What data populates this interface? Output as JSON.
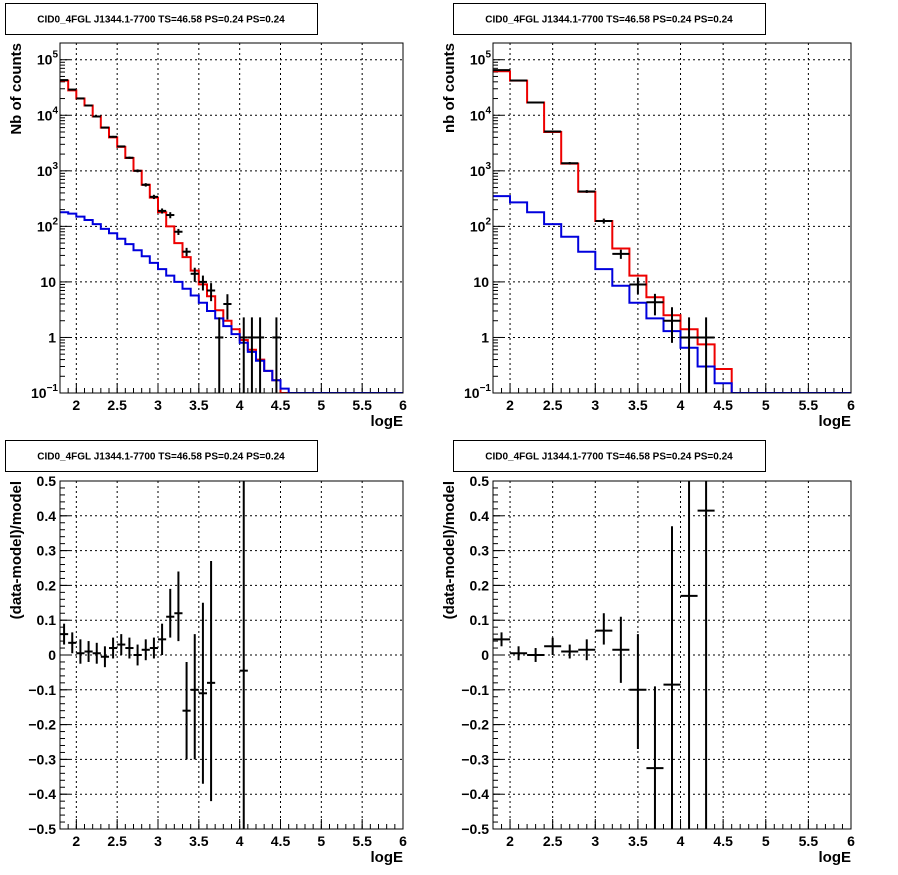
{
  "colors": {
    "data": "#000000",
    "total_model": "#ee0000",
    "source_model": "#0000dd",
    "background": "#ffffff"
  },
  "chart_data": [
    {
      "type": "line",
      "title": "CID0_4FGL J1344.1-7700 TS=46.58 PS=0.24 PS=0.24",
      "xlabel": "logE",
      "ylabel": "Nb of counts",
      "xlim": [
        1.8,
        6.0
      ],
      "ylim": [
        0.1,
        200000
      ],
      "yscale": "log",
      "grid": true,
      "xticks": [
        "2",
        "2.5",
        "3",
        "3.5",
        "4",
        "4.5",
        "5",
        "5.5",
        "6"
      ],
      "yticks": [
        {
          "value": 0.1,
          "base": "10",
          "exp": "−1"
        },
        {
          "value": 1,
          "base": "1",
          "exp": ""
        },
        {
          "value": 10,
          "base": "10",
          "exp": ""
        },
        {
          "value": 100,
          "base": "10",
          "exp": "2"
        },
        {
          "value": 1000,
          "base": "10",
          "exp": "3"
        },
        {
          "value": 10000,
          "base": "10",
          "exp": "4"
        },
        {
          "value": 100000,
          "base": "10",
          "exp": "5"
        }
      ],
      "bin_edges": [
        1.8,
        1.9,
        2.0,
        2.1,
        2.2,
        2.3,
        2.4,
        2.5,
        2.6,
        2.7,
        2.8,
        2.9,
        3.0,
        3.1,
        3.2,
        3.3,
        3.4,
        3.5,
        3.6,
        3.7,
        3.8,
        3.9,
        4.0,
        4.1,
        4.2,
        4.3,
        4.4,
        4.5,
        4.6,
        4.7,
        4.8,
        4.9,
        5.0,
        5.1,
        5.2,
        5.3,
        5.4,
        5.5,
        5.6,
        5.7,
        5.8,
        5.9,
        6.0
      ],
      "series": [
        {
          "style": "step",
          "color": "#ee0000",
          "values": [
            42000,
            28000,
            20000,
            15000,
            9500,
            6000,
            4000,
            2700,
            1700,
            1000,
            560,
            330,
            180,
            100,
            50,
            28,
            16,
            9,
            5.5,
            3.1,
            2.0,
            1.4,
            0.9,
            0.6,
            0.4,
            0.25,
            0.17,
            0.1,
            0.1,
            0.1,
            0.1,
            0.1,
            0.1,
            0.1,
            0.1,
            0.1,
            0.1,
            0.1,
            0.1,
            0.1,
            0.1,
            0.1
          ]
        },
        {
          "style": "step",
          "color": "#0000dd",
          "values": [
            180,
            170,
            150,
            130,
            110,
            90,
            75,
            60,
            48,
            37,
            29,
            22,
            17,
            13,
            10,
            7.5,
            5.7,
            4.2,
            3.0,
            2.2,
            1.6,
            1.15,
            0.8,
            0.55,
            0.38,
            0.25,
            0.17,
            0.12,
            0.1,
            0.1,
            0.1,
            0.1,
            0.1,
            0.1,
            0.1,
            0.1,
            0.1,
            0.1,
            0.1,
            0.1,
            0.1,
            0.1
          ]
        },
        {
          "style": "points",
          "color": "#000000",
          "points": [
            {
              "x": 1.85,
              "xerr": 0.05,
              "y": 43000,
              "ylo": 42000,
              "yhi": 44000
            },
            {
              "x": 1.95,
              "xerr": 0.05,
              "y": 29000,
              "ylo": 28200,
              "yhi": 29800
            },
            {
              "x": 2.05,
              "xerr": 0.05,
              "y": 20100,
              "ylo": 19500,
              "yhi": 20700
            },
            {
              "x": 2.15,
              "xerr": 0.05,
              "y": 15000,
              "ylo": 14500,
              "yhi": 15500
            },
            {
              "x": 2.25,
              "xerr": 0.05,
              "y": 9500,
              "ylo": 9200,
              "yhi": 9800
            },
            {
              "x": 2.35,
              "xerr": 0.05,
              "y": 6000,
              "ylo": 5800,
              "yhi": 6200
            },
            {
              "x": 2.45,
              "xerr": 0.05,
              "y": 4100,
              "ylo": 3950,
              "yhi": 4250
            },
            {
              "x": 2.55,
              "xerr": 0.05,
              "y": 2750,
              "ylo": 2650,
              "yhi": 2850
            },
            {
              "x": 2.65,
              "xerr": 0.05,
              "y": 1720,
              "ylo": 1640,
              "yhi": 1800
            },
            {
              "x": 2.75,
              "xerr": 0.05,
              "y": 1000,
              "ylo": 940,
              "yhi": 1060
            },
            {
              "x": 2.85,
              "xerr": 0.05,
              "y": 560,
              "ylo": 520,
              "yhi": 600
            },
            {
              "x": 2.95,
              "xerr": 0.05,
              "y": 340,
              "ylo": 310,
              "yhi": 370
            },
            {
              "x": 3.05,
              "xerr": 0.05,
              "y": 190,
              "ylo": 170,
              "yhi": 210
            },
            {
              "x": 3.15,
              "xerr": 0.05,
              "y": 160,
              "ylo": 140,
              "yhi": 180
            },
            {
              "x": 3.25,
              "xerr": 0.05,
              "y": 80,
              "ylo": 70,
              "yhi": 90
            },
            {
              "x": 3.35,
              "xerr": 0.05,
              "y": 35,
              "ylo": 29,
              "yhi": 41
            },
            {
              "x": 3.45,
              "xerr": 0.05,
              "y": 14,
              "ylo": 10,
              "yhi": 18
            },
            {
              "x": 3.55,
              "xerr": 0.05,
              "y": 10,
              "ylo": 7,
              "yhi": 13
            },
            {
              "x": 3.65,
              "xerr": 0.05,
              "y": 7,
              "ylo": 4.5,
              "yhi": 9.5
            },
            {
              "x": 3.75,
              "xerr": 0.05,
              "y": 1,
              "ylo": 0.1,
              "yhi": 2.3
            },
            {
              "x": 3.85,
              "xerr": 0.05,
              "y": 4,
              "ylo": 2.1,
              "yhi": 6
            },
            {
              "x": 4.05,
              "xerr": 0.05,
              "y": 1,
              "ylo": 0.1,
              "yhi": 2.3
            },
            {
              "x": 4.15,
              "xerr": 0.05,
              "y": 1,
              "ylo": 0.1,
              "yhi": 2.3
            },
            {
              "x": 4.25,
              "xerr": 0.05,
              "y": 1,
              "ylo": 0.1,
              "yhi": 2.3
            },
            {
              "x": 4.45,
              "xerr": 0.05,
              "y": 1,
              "ylo": 0.1,
              "yhi": 2.3
            }
          ]
        }
      ]
    },
    {
      "type": "line",
      "title": "CID0_4FGL J1344.1-7700 TS=46.58 PS=0.24 PS=0.24",
      "xlabel": "logE",
      "ylabel": "nb of counts",
      "xlim": [
        1.8,
        6.0
      ],
      "ylim": [
        0.1,
        200000
      ],
      "yscale": "log",
      "grid": true,
      "xticks": [
        "2",
        "2.5",
        "3",
        "3.5",
        "4",
        "4.5",
        "5",
        "5.5",
        "6"
      ],
      "yticks": [
        {
          "value": 0.1,
          "base": "10",
          "exp": "−1"
        },
        {
          "value": 1,
          "base": "1",
          "exp": ""
        },
        {
          "value": 10,
          "base": "10",
          "exp": ""
        },
        {
          "value": 100,
          "base": "10",
          "exp": "2"
        },
        {
          "value": 1000,
          "base": "10",
          "exp": "3"
        },
        {
          "value": 10000,
          "base": "10",
          "exp": "4"
        },
        {
          "value": 100000,
          "base": "10",
          "exp": "5"
        }
      ],
      "bin_edges": [
        1.8,
        2.0,
        2.2,
        2.4,
        2.6,
        2.8,
        3.0,
        3.2,
        3.4,
        3.6,
        3.8,
        4.0,
        4.2,
        4.4,
        4.6,
        4.8,
        5.0,
        5.2,
        5.4,
        5.6,
        5.8,
        6.0
      ],
      "series": [
        {
          "style": "step",
          "color": "#ee0000",
          "values": [
            62000,
            42000,
            17000,
            5000,
            1350,
            420,
            125,
            40,
            13,
            5.3,
            2.5,
            1.4,
            0.75,
            0.27,
            0.1,
            0.1,
            0.1,
            0.1,
            0.1,
            0.1,
            0.1
          ]
        },
        {
          "style": "step",
          "color": "#0000dd",
          "values": [
            350,
            270,
            180,
            110,
            65,
            35,
            17,
            8.5,
            4.2,
            2.2,
            1.3,
            0.65,
            0.3,
            0.15,
            0.1,
            0.1,
            0.1,
            0.1,
            0.1,
            0.1,
            0.1
          ]
        },
        {
          "style": "points",
          "color": "#000000",
          "points": [
            {
              "x": 1.9,
              "xerr": 0.1,
              "y": 65000,
              "ylo": 64000,
              "yhi": 66000
            },
            {
              "x": 2.1,
              "xerr": 0.1,
              "y": 42200,
              "ylo": 41500,
              "yhi": 42900
            },
            {
              "x": 2.3,
              "xerr": 0.1,
              "y": 17000,
              "ylo": 16600,
              "yhi": 17400
            },
            {
              "x": 2.5,
              "xerr": 0.1,
              "y": 5100,
              "ylo": 4950,
              "yhi": 5250
            },
            {
              "x": 2.7,
              "xerr": 0.1,
              "y": 1370,
              "ylo": 1300,
              "yhi": 1440
            },
            {
              "x": 2.9,
              "xerr": 0.1,
              "y": 425,
              "ylo": 400,
              "yhi": 450
            },
            {
              "x": 3.1,
              "xerr": 0.1,
              "y": 125,
              "ylo": 112,
              "yhi": 138
            },
            {
              "x": 3.3,
              "xerr": 0.1,
              "y": 32,
              "ylo": 26,
              "yhi": 38
            },
            {
              "x": 3.5,
              "xerr": 0.1,
              "y": 9,
              "ylo": 6,
              "yhi": 12
            },
            {
              "x": 3.7,
              "xerr": 0.1,
              "y": 4.3,
              "ylo": 2.5,
              "yhi": 6.1
            },
            {
              "x": 3.9,
              "xerr": 0.1,
              "y": 2,
              "ylo": 0.8,
              "yhi": 3.5
            },
            {
              "x": 4.1,
              "xerr": 0.1,
              "y": 1,
              "ylo": 0.1,
              "yhi": 2.3
            },
            {
              "x": 4.3,
              "xerr": 0.1,
              "y": 1,
              "ylo": 0.1,
              "yhi": 2.3
            }
          ]
        }
      ]
    },
    {
      "type": "scatter",
      "title": "CID0_4FGL J1344.1-7700 TS=46.58 PS=0.24 PS=0.24",
      "xlabel": "logE",
      "ylabel": "(data-model)/model",
      "xlim": [
        1.8,
        6.0
      ],
      "ylim": [
        -0.5,
        0.5
      ],
      "yscale": "linear",
      "grid": true,
      "xticks": [
        "2",
        "2.5",
        "3",
        "3.5",
        "4",
        "4.5",
        "5",
        "5.5",
        "6"
      ],
      "yticks": [
        "−0.5",
        "−0.4",
        "−0.3",
        "−0.2",
        "−0.1",
        "0",
        "0.1",
        "0.2",
        "0.3",
        "0.4",
        "0.5"
      ],
      "series": [
        {
          "style": "points",
          "color": "#000000",
          "points": [
            {
              "x": 1.85,
              "xerr": 0.05,
              "y": 0.06,
              "ylo": 0.03,
              "yhi": 0.09
            },
            {
              "x": 1.95,
              "xerr": 0.05,
              "y": 0.035,
              "ylo": 0.005,
              "yhi": 0.065
            },
            {
              "x": 2.05,
              "xerr": 0.05,
              "y": 0.005,
              "ylo": -0.025,
              "yhi": 0.045
            },
            {
              "x": 2.15,
              "xerr": 0.05,
              "y": 0.01,
              "ylo": -0.02,
              "yhi": 0.04
            },
            {
              "x": 2.25,
              "xerr": 0.05,
              "y": 0.005,
              "ylo": -0.025,
              "yhi": 0.035
            },
            {
              "x": 2.35,
              "xerr": 0.05,
              "y": -0.005,
              "ylo": -0.035,
              "yhi": 0.025
            },
            {
              "x": 2.45,
              "xerr": 0.05,
              "y": 0.02,
              "ylo": -0.01,
              "yhi": 0.05
            },
            {
              "x": 2.55,
              "xerr": 0.05,
              "y": 0.03,
              "ylo": 0.0,
              "yhi": 0.06
            },
            {
              "x": 2.65,
              "xerr": 0.05,
              "y": 0.02,
              "ylo": -0.01,
              "yhi": 0.05
            },
            {
              "x": 2.75,
              "xerr": 0.05,
              "y": 0.0,
              "ylo": -0.03,
              "yhi": 0.03
            },
            {
              "x": 2.85,
              "xerr": 0.05,
              "y": 0.015,
              "ylo": -0.015,
              "yhi": 0.045
            },
            {
              "x": 2.95,
              "xerr": 0.05,
              "y": 0.02,
              "ylo": -0.01,
              "yhi": 0.05
            },
            {
              "x": 3.05,
              "xerr": 0.05,
              "y": 0.045,
              "ylo": 0.0,
              "yhi": 0.09
            },
            {
              "x": 3.15,
              "xerr": 0.05,
              "y": 0.11,
              "ylo": 0.05,
              "yhi": 0.19
            },
            {
              "x": 3.25,
              "xerr": 0.05,
              "y": 0.12,
              "ylo": 0.04,
              "yhi": 0.24
            },
            {
              "x": 3.35,
              "xerr": 0.05,
              "y": -0.16,
              "ylo": -0.3,
              "yhi": -0.02
            },
            {
              "x": 3.45,
              "xerr": 0.05,
              "y": -0.1,
              "ylo": -0.3,
              "yhi": 0.06
            },
            {
              "x": 3.55,
              "xerr": 0.05,
              "y": -0.11,
              "ylo": -0.37,
              "yhi": 0.15
            },
            {
              "x": 3.65,
              "xerr": 0.05,
              "y": -0.08,
              "ylo": -0.42,
              "yhi": 0.27
            },
            {
              "x": 4.05,
              "xerr": 0.05,
              "y": -0.045,
              "ylo": -0.5,
              "yhi": 0.5
            }
          ]
        }
      ]
    },
    {
      "type": "scatter",
      "title": "CID0_4FGL J1344.1-7700 TS=46.58 PS=0.24 PS=0.24",
      "xlabel": "logE",
      "ylabel": "(data-model)/model",
      "xlim": [
        1.8,
        6.0
      ],
      "ylim": [
        -0.5,
        0.5
      ],
      "yscale": "linear",
      "grid": true,
      "xticks": [
        "2",
        "2.5",
        "3",
        "3.5",
        "4",
        "4.5",
        "5",
        "5.5",
        "6"
      ],
      "yticks": [
        "−0.5",
        "−0.4",
        "−0.3",
        "−0.2",
        "−0.1",
        "0",
        "0.1",
        "0.2",
        "0.3",
        "0.4",
        "0.5"
      ],
      "series": [
        {
          "style": "points",
          "color": "#000000",
          "points": [
            {
              "x": 1.9,
              "xerr": 0.1,
              "y": 0.045,
              "ylo": 0.025,
              "yhi": 0.065
            },
            {
              "x": 2.1,
              "xerr": 0.1,
              "y": 0.005,
              "ylo": -0.015,
              "yhi": 0.025
            },
            {
              "x": 2.3,
              "xerr": 0.1,
              "y": 0.0,
              "ylo": -0.02,
              "yhi": 0.02
            },
            {
              "x": 2.5,
              "xerr": 0.1,
              "y": 0.025,
              "ylo": 0.0,
              "yhi": 0.05
            },
            {
              "x": 2.7,
              "xerr": 0.1,
              "y": 0.01,
              "ylo": -0.01,
              "yhi": 0.03
            },
            {
              "x": 2.9,
              "xerr": 0.1,
              "y": 0.015,
              "ylo": -0.015,
              "yhi": 0.045
            },
            {
              "x": 3.1,
              "xerr": 0.1,
              "y": 0.07,
              "ylo": 0.03,
              "yhi": 0.12
            },
            {
              "x": 3.3,
              "xerr": 0.1,
              "y": 0.015,
              "ylo": -0.08,
              "yhi": 0.11
            },
            {
              "x": 3.5,
              "xerr": 0.1,
              "y": -0.1,
              "ylo": -0.27,
              "yhi": 0.06
            },
            {
              "x": 3.7,
              "xerr": 0.1,
              "y": -0.325,
              "ylo": -0.5,
              "yhi": -0.09
            },
            {
              "x": 3.9,
              "xerr": 0.1,
              "y": -0.085,
              "ylo": -0.5,
              "yhi": 0.37
            },
            {
              "x": 4.1,
              "xerr": 0.1,
              "y": 0.17,
              "ylo": -0.5,
              "yhi": 0.5
            },
            {
              "x": 4.3,
              "xerr": 0.1,
              "y": 0.415,
              "ylo": -0.5,
              "yhi": 0.5
            }
          ]
        }
      ]
    }
  ]
}
